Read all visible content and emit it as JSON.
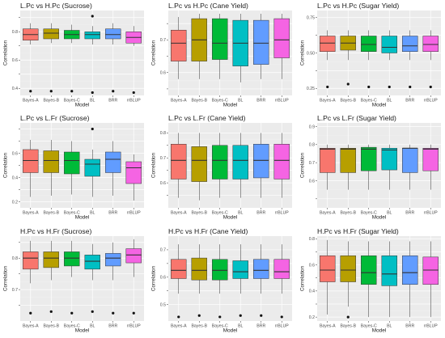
{
  "colors": {
    "panel_bg": "#ebebeb",
    "grid_major": "#ffffff",
    "grid_minor": "#f4f4f4",
    "box_outline": "#333333",
    "outlier": "#111111"
  },
  "chart_data": [
    {
      "type": "box",
      "title": "L.Pc vs H.Pc (Sucrose)",
      "xlabel": "Model",
      "ylabel": "Correlation",
      "categories": [
        "Bayes-A",
        "Bayes-B",
        "Bayes-C",
        "BL",
        "BRR",
        "rrBLUP"
      ],
      "colors": [
        "#F8766D",
        "#B79F00",
        "#00BA38",
        "#00BFC4",
        "#619CFF",
        "#F564E3"
      ],
      "ylim": [
        0.35,
        0.95
      ],
      "yticks": [
        0.4,
        0.5,
        0.6,
        0.7,
        0.8,
        0.9
      ],
      "ytick_labels": [
        "0.4",
        "",
        "0.6",
        "",
        "0.8",
        ""
      ],
      "boxes": [
        {
          "whislo": 0.71,
          "q1": 0.74,
          "med": 0.78,
          "q3": 0.82,
          "whishi": 0.86,
          "outliers": [
            0.38
          ]
        },
        {
          "whislo": 0.72,
          "q1": 0.75,
          "med": 0.79,
          "q3": 0.82,
          "whishi": 0.86,
          "outliers": [
            0.38
          ]
        },
        {
          "whislo": 0.72,
          "q1": 0.75,
          "med": 0.78,
          "q3": 0.81,
          "whishi": 0.85,
          "outliers": [
            0.38
          ]
        },
        {
          "whislo": 0.71,
          "q1": 0.75,
          "med": 0.78,
          "q3": 0.8,
          "whishi": 0.84,
          "outliers": [
            0.37,
            0.91
          ]
        },
        {
          "whislo": 0.71,
          "q1": 0.75,
          "med": 0.78,
          "q3": 0.82,
          "whishi": 0.86,
          "outliers": [
            0.38
          ]
        },
        {
          "whislo": 0.7,
          "q1": 0.72,
          "med": 0.76,
          "q3": 0.8,
          "whishi": 0.84,
          "outliers": [
            0.37
          ]
        }
      ]
    },
    {
      "type": "box",
      "title": "L.Pc vs H.Pc (Cane Yield)",
      "xlabel": "Model",
      "ylabel": "Correlation",
      "categories": [
        "Bayes-A",
        "Bayes-B",
        "Bayes-C",
        "BL",
        "BRR",
        "rrBLUP"
      ],
      "colors": [
        "#F8766D",
        "#B79F00",
        "#00BA38",
        "#00BFC4",
        "#619CFF",
        "#F564E3"
      ],
      "ylim": [
        0.53,
        0.79
      ],
      "yticks": [
        0.55,
        0.6,
        0.65,
        0.7,
        0.75
      ],
      "ytick_labels": [
        "",
        "0.6",
        "",
        "0.7",
        ""
      ],
      "boxes": [
        {
          "whislo": 0.58,
          "q1": 0.635,
          "med": 0.69,
          "q3": 0.73,
          "whishi": 0.77,
          "outliers": []
        },
        {
          "whislo": 0.58,
          "q1": 0.635,
          "med": 0.7,
          "q3": 0.765,
          "whishi": 0.78,
          "outliers": []
        },
        {
          "whislo": 0.58,
          "q1": 0.64,
          "med": 0.69,
          "q3": 0.765,
          "whishi": 0.78,
          "outliers": []
        },
        {
          "whislo": 0.57,
          "q1": 0.62,
          "med": 0.69,
          "q3": 0.76,
          "whishi": 0.78,
          "outliers": []
        },
        {
          "whislo": 0.58,
          "q1": 0.625,
          "med": 0.69,
          "q3": 0.76,
          "whishi": 0.78,
          "outliers": []
        },
        {
          "whislo": 0.58,
          "q1": 0.645,
          "med": 0.7,
          "q3": 0.765,
          "whishi": 0.78,
          "outliers": []
        }
      ]
    },
    {
      "type": "box",
      "title": "L.Pc vs H.Pc (Sugar Yield)",
      "xlabel": "Model",
      "ylabel": "Correlation",
      "categories": [
        "Bayes-A",
        "Bayes-B",
        "Bayes-C",
        "BL",
        "BRR",
        "rrBLUP"
      ],
      "colors": [
        "#F8766D",
        "#B79F00",
        "#00BA38",
        "#00BFC4",
        "#619CFF",
        "#F564E3"
      ],
      "ylim": [
        0.2,
        0.8
      ],
      "yticks": [
        0.25,
        0.375,
        0.5,
        0.625,
        0.75
      ],
      "ytick_labels": [
        "0.25",
        "",
        "0.50",
        "",
        "0.75"
      ],
      "boxes": [
        {
          "whislo": 0.45,
          "q1": 0.51,
          "med": 0.57,
          "q3": 0.62,
          "whishi": 0.66,
          "outliers": [
            0.26
          ]
        },
        {
          "whislo": 0.45,
          "q1": 0.52,
          "med": 0.57,
          "q3": 0.62,
          "whishi": 0.66,
          "outliers": [
            0.28
          ]
        },
        {
          "whislo": 0.45,
          "q1": 0.51,
          "med": 0.56,
          "q3": 0.62,
          "whishi": 0.66,
          "outliers": [
            0.26
          ]
        },
        {
          "whislo": 0.45,
          "q1": 0.5,
          "med": 0.54,
          "q3": 0.62,
          "whishi": 0.66,
          "outliers": [
            0.26
          ]
        },
        {
          "whislo": 0.45,
          "q1": 0.51,
          "med": 0.55,
          "q3": 0.62,
          "whishi": 0.66,
          "outliers": [
            0.26
          ]
        },
        {
          "whislo": 0.45,
          "q1": 0.51,
          "med": 0.56,
          "q3": 0.62,
          "whishi": 0.66,
          "outliers": [
            0.26
          ]
        }
      ]
    },
    {
      "type": "box",
      "title": "L.Pc vs L.Fr (Sucrose)",
      "xlabel": "Model",
      "ylabel": "Correlation",
      "categories": [
        "Bayes-A",
        "Bayes-B",
        "Bayes-C",
        "BL",
        "BRR",
        "rrBLUP"
      ],
      "colors": [
        "#F8766D",
        "#B79F00",
        "#00BA38",
        "#00BFC4",
        "#619CFF",
        "#F564E3"
      ],
      "ylim": [
        0.15,
        0.85
      ],
      "yticks": [
        0.2,
        0.3,
        0.4,
        0.5,
        0.6,
        0.7,
        0.8
      ],
      "ytick_labels": [
        "0.2",
        "",
        "0.4",
        "",
        "0.6",
        "",
        ""
      ],
      "boxes": [
        {
          "whislo": 0.24,
          "q1": 0.44,
          "med": 0.54,
          "q3": 0.63,
          "whishi": 0.71,
          "outliers": []
        },
        {
          "whislo": 0.25,
          "q1": 0.44,
          "med": 0.54,
          "q3": 0.62,
          "whishi": 0.71,
          "outliers": []
        },
        {
          "whislo": 0.26,
          "q1": 0.43,
          "med": 0.54,
          "q3": 0.61,
          "whishi": 0.7,
          "outliers": []
        },
        {
          "whislo": 0.24,
          "q1": 0.41,
          "med": 0.51,
          "q3": 0.55,
          "whishi": 0.63,
          "outliers": [
            0.8
          ]
        },
        {
          "whislo": 0.25,
          "q1": 0.44,
          "med": 0.55,
          "q3": 0.61,
          "whishi": 0.7,
          "outliers": []
        },
        {
          "whislo": 0.21,
          "q1": 0.35,
          "med": 0.48,
          "q3": 0.53,
          "whishi": 0.59,
          "outliers": []
        }
      ]
    },
    {
      "type": "box",
      "title": "L.Pc vs L.Fr (Cane Yield)",
      "xlabel": "Model",
      "ylabel": "Correlation",
      "categories": [
        "Bayes-A",
        "Bayes-B",
        "Bayes-C",
        "BL",
        "BRR",
        "rrBLUP"
      ],
      "colors": [
        "#F8766D",
        "#B79F00",
        "#00BA38",
        "#00BFC4",
        "#619CFF",
        "#F564E3"
      ],
      "ylim": [
        0.5,
        0.84
      ],
      "yticks": [
        0.55,
        0.6,
        0.65,
        0.7,
        0.75,
        0.8
      ],
      "ytick_labels": [
        "",
        "0.6",
        "",
        "0.7",
        "",
        "0.8"
      ],
      "boxes": [
        {
          "whislo": 0.54,
          "q1": 0.615,
          "med": 0.69,
          "q3": 0.755,
          "whishi": 0.8,
          "outliers": []
        },
        {
          "whislo": 0.53,
          "q1": 0.605,
          "med": 0.69,
          "q3": 0.745,
          "whishi": 0.8,
          "outliers": []
        },
        {
          "whislo": 0.54,
          "q1": 0.615,
          "med": 0.69,
          "q3": 0.75,
          "whishi": 0.8,
          "outliers": []
        },
        {
          "whislo": 0.54,
          "q1": 0.615,
          "med": 0.69,
          "q3": 0.75,
          "whishi": 0.8,
          "outliers": []
        },
        {
          "whislo": 0.54,
          "q1": 0.62,
          "med": 0.69,
          "q3": 0.755,
          "whishi": 0.8,
          "outliers": []
        },
        {
          "whislo": 0.54,
          "q1": 0.615,
          "med": 0.69,
          "q3": 0.755,
          "whishi": 0.8,
          "outliers": []
        }
      ]
    },
    {
      "type": "box",
      "title": "L.Pc vs L.Fr (Sugar Yield)",
      "xlabel": "Model",
      "ylabel": "Correlation",
      "categories": [
        "Bayes-A",
        "Bayes-B",
        "Bayes-C",
        "BL",
        "BRR",
        "rrBLUP"
      ],
      "colors": [
        "#F8766D",
        "#B79F00",
        "#00BA38",
        "#00BFC4",
        "#619CFF",
        "#F564E3"
      ],
      "ylim": [
        0.45,
        0.92
      ],
      "yticks": [
        0.5,
        0.6,
        0.7,
        0.8,
        0.9
      ],
      "ytick_labels": [
        "",
        "0.6",
        "0.7",
        "0.8",
        "0.9"
      ],
      "boxes": [
        {
          "whislo": 0.55,
          "q1": 0.645,
          "med": 0.775,
          "q3": 0.78,
          "whishi": 0.8,
          "outliers": []
        },
        {
          "whislo": 0.55,
          "q1": 0.645,
          "med": 0.775,
          "q3": 0.78,
          "whishi": 0.8,
          "outliers": []
        },
        {
          "whislo": 0.55,
          "q1": 0.655,
          "med": 0.775,
          "q3": 0.785,
          "whishi": 0.8,
          "outliers": []
        },
        {
          "whislo": 0.55,
          "q1": 0.66,
          "med": 0.77,
          "q3": 0.78,
          "whishi": 0.8,
          "outliers": []
        },
        {
          "whislo": 0.55,
          "q1": 0.645,
          "med": 0.78,
          "q3": 0.78,
          "whishi": 0.8,
          "outliers": []
        },
        {
          "whislo": 0.55,
          "q1": 0.655,
          "med": 0.775,
          "q3": 0.78,
          "whishi": 0.8,
          "outliers": []
        }
      ]
    },
    {
      "type": "box",
      "title": "H.Pc vs H.Fr (Sucrose)",
      "xlabel": "Model",
      "ylabel": "Correlation",
      "categories": [
        "Bayes-A",
        "Bayes-B",
        "Bayes-C",
        "BL",
        "BRR",
        "rrBLUP"
      ],
      "colors": [
        "#F8766D",
        "#B79F00",
        "#00BA38",
        "#00BFC4",
        "#619CFF",
        "#F564E3"
      ],
      "ylim": [
        0.6,
        0.87
      ],
      "yticks": [
        0.65,
        0.7,
        0.75,
        0.8,
        0.85
      ],
      "ytick_labels": [
        "",
        "0.7",
        "",
        "0.8",
        ""
      ],
      "boxes": [
        {
          "whislo": 0.72,
          "q1": 0.765,
          "med": 0.8,
          "q3": 0.82,
          "whishi": 0.855,
          "outliers": [
            0.625
          ]
        },
        {
          "whislo": 0.73,
          "q1": 0.77,
          "med": 0.8,
          "q3": 0.82,
          "whishi": 0.855,
          "outliers": [
            0.63
          ]
        },
        {
          "whislo": 0.74,
          "q1": 0.775,
          "med": 0.8,
          "q3": 0.82,
          "whishi": 0.855,
          "outliers": [
            0.625
          ]
        },
        {
          "whislo": 0.73,
          "q1": 0.765,
          "med": 0.79,
          "q3": 0.81,
          "whishi": 0.845,
          "outliers": [
            0.63
          ]
        },
        {
          "whislo": 0.73,
          "q1": 0.775,
          "med": 0.8,
          "q3": 0.815,
          "whishi": 0.85,
          "outliers": [
            0.625
          ]
        },
        {
          "whislo": 0.74,
          "q1": 0.785,
          "med": 0.81,
          "q3": 0.83,
          "whishi": 0.86,
          "outliers": [
            0.625
          ]
        }
      ]
    },
    {
      "type": "box",
      "title": "H.Pc vs H.Fr (Cane Yield)",
      "xlabel": "Model",
      "ylabel": "Correlation",
      "categories": [
        "Bayes-A",
        "Bayes-B",
        "Bayes-C",
        "BL",
        "BRR",
        "rrBLUP"
      ],
      "colors": [
        "#F8766D",
        "#B79F00",
        "#00BA38",
        "#00BFC4",
        "#619CFF",
        "#F564E3"
      ],
      "ylim": [
        0.44,
        0.75
      ],
      "yticks": [
        0.5,
        0.55,
        0.6,
        0.65,
        0.7
      ],
      "ytick_labels": [
        "0.5",
        "",
        "0.6",
        "",
        "0.7"
      ],
      "boxes": [
        {
          "whislo": 0.54,
          "q1": 0.595,
          "med": 0.625,
          "q3": 0.665,
          "whishi": 0.72,
          "outliers": [
            0.455
          ]
        },
        {
          "whislo": 0.54,
          "q1": 0.59,
          "med": 0.625,
          "q3": 0.67,
          "whishi": 0.72,
          "outliers": [
            0.46
          ]
        },
        {
          "whislo": 0.54,
          "q1": 0.59,
          "med": 0.625,
          "q3": 0.665,
          "whishi": 0.72,
          "outliers": [
            0.455
          ]
        },
        {
          "whislo": 0.54,
          "q1": 0.595,
          "med": 0.62,
          "q3": 0.66,
          "whishi": 0.72,
          "outliers": [
            0.46
          ]
        },
        {
          "whislo": 0.54,
          "q1": 0.595,
          "med": 0.625,
          "q3": 0.665,
          "whishi": 0.72,
          "outliers": [
            0.46
          ]
        },
        {
          "whislo": 0.54,
          "q1": 0.595,
          "med": 0.62,
          "q3": 0.665,
          "whishi": 0.72,
          "outliers": [
            0.455
          ]
        }
      ]
    },
    {
      "type": "box",
      "title": "H.Pc vs H.Fr (Sugar Yield)",
      "xlabel": "Model",
      "ylabel": "Correlation",
      "categories": [
        "Bayes-A",
        "Bayes-B",
        "Bayes-C",
        "BL",
        "BRR",
        "rrBLUP"
      ],
      "colors": [
        "#F8766D",
        "#B79F00",
        "#00BA38",
        "#00BFC4",
        "#619CFF",
        "#F564E3"
      ],
      "ylim": [
        0.17,
        0.82
      ],
      "yticks": [
        0.2,
        0.3,
        0.4,
        0.5,
        0.6,
        0.7,
        0.8
      ],
      "ytick_labels": [
        "0.2",
        "",
        "0.4",
        "",
        "0.6",
        "",
        "0.8"
      ],
      "boxes": [
        {
          "whislo": 0.22,
          "q1": 0.47,
          "med": 0.56,
          "q3": 0.67,
          "whishi": 0.79,
          "outliers": []
        },
        {
          "whislo": 0.28,
          "q1": 0.47,
          "med": 0.56,
          "q3": 0.67,
          "whishi": 0.78,
          "outliers": [
            0.2
          ]
        },
        {
          "whislo": 0.2,
          "q1": 0.45,
          "med": 0.54,
          "q3": 0.67,
          "whishi": 0.78,
          "outliers": []
        },
        {
          "whislo": 0.2,
          "q1": 0.44,
          "med": 0.53,
          "q3": 0.67,
          "whishi": 0.78,
          "outliers": []
        },
        {
          "whislo": 0.2,
          "q1": 0.45,
          "med": 0.54,
          "q3": 0.67,
          "whishi": 0.78,
          "outliers": []
        },
        {
          "whislo": 0.2,
          "q1": 0.45,
          "med": 0.56,
          "q3": 0.66,
          "whishi": 0.78,
          "outliers": []
        }
      ]
    }
  ]
}
